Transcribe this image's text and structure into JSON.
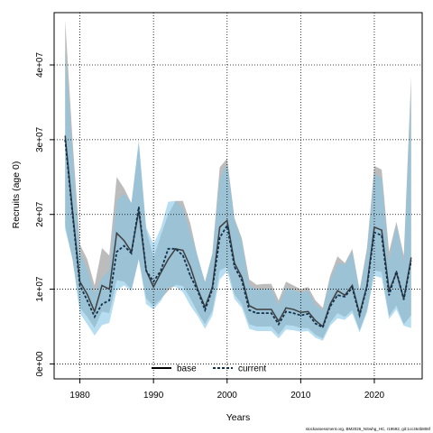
{
  "chart_data": {
    "type": "line",
    "xlabel": "Years",
    "ylabel": "Recruits (age 0)",
    "xlim": [
      1976.5,
      2026.5
    ],
    "ylim": [
      -2000000,
      47000000
    ],
    "x_ticks": [
      1980,
      1990,
      2000,
      2010,
      2020
    ],
    "x_tick_labels": [
      "1980",
      "1990",
      "2000",
      "2010",
      "2020"
    ],
    "y_ticks": [
      0,
      10000000,
      20000000,
      30000000,
      40000000
    ],
    "y_tick_labels": [
      "0e+00",
      "1e+07",
      "2e+07",
      "3e+07",
      "4e+07"
    ],
    "grid": true,
    "legend_position": "bottom",
    "caption": "stockassessment.org, BM2026_NSwhg_HC, r19592, git:1cc464b806f",
    "x": [
      1978,
      1979,
      1980,
      1981,
      1982,
      1983,
      1984,
      1985,
      1986,
      1987,
      1988,
      1989,
      1990,
      1991,
      1992,
      1993,
      1994,
      1995,
      1996,
      1997,
      1998,
      1999,
      2000,
      2001,
      2002,
      2003,
      2004,
      2005,
      2006,
      2007,
      2008,
      2009,
      2010,
      2011,
      2012,
      2013,
      2014,
      2015,
      2016,
      2017,
      2018,
      2019,
      2020,
      2021,
      2022,
      2023,
      2024,
      2025
    ],
    "series": [
      {
        "name": "base",
        "color": "#3f3f3f",
        "band_color": "#a6a6a6",
        "line_style": "solid",
        "values": [
          30500000,
          20500000,
          11000000,
          9300000,
          7000000,
          10500000,
          10000000,
          17500000,
          16500000,
          15000000,
          20500000,
          12500000,
          10300000,
          12200000,
          14000000,
          15400000,
          15200000,
          13000000,
          10000000,
          7600000,
          10300000,
          18300000,
          19200000,
          13500000,
          11600000,
          7800000,
          7300000,
          7300000,
          7300000,
          5700000,
          7500000,
          7300000,
          6900000,
          7000000,
          5800000,
          5000000,
          8000000,
          9800000,
          9200000,
          10500000,
          6700000,
          10500000,
          18300000,
          17900000,
          9800000,
          12200000,
          8700000,
          14200000
        ],
        "lower": [
          18500000,
          14000000,
          7500000,
          6300000,
          4800000,
          7000000,
          6800000,
          11200000,
          11000000,
          10000000,
          14000000,
          8800000,
          7700000,
          8700000,
          9800000,
          10600000,
          10400000,
          8800000,
          6900000,
          5300000,
          7100000,
          12500000,
          13000000,
          9300000,
          8000000,
          5300000,
          5000000,
          5000000,
          5000000,
          3900000,
          5200000,
          5100000,
          4800000,
          4800000,
          3900000,
          3400000,
          5500000,
          6800000,
          6300000,
          7200000,
          4500000,
          7100000,
          12500000,
          12300000,
          6400000,
          7800000,
          5300000,
          6500000
        ],
        "upper": [
          46000000,
          30000000,
          16000000,
          14000000,
          10500000,
          15500000,
          14500000,
          25000000,
          23500000,
          21500000,
          29500000,
          18000000,
          14200000,
          17200000,
          20000000,
          21800000,
          21800000,
          18800000,
          14300000,
          11000000,
          14800000,
          26300000,
          27500000,
          19500000,
          16800000,
          11300000,
          10600000,
          10700000,
          10700000,
          8500000,
          11000000,
          10500000,
          10000000,
          10300000,
          8500000,
          7500000,
          11800000,
          14400000,
          13500000,
          15400000,
          9900000,
          15500000,
          26500000,
          26000000,
          15000000,
          19000000,
          14500000,
          38500000
        ]
      },
      {
        "name": "current",
        "color": "#12314d",
        "band_color": "#87c7e6",
        "line_style": "dashed",
        "values": [
          30000000,
          20000000,
          10500000,
          8500000,
          6300000,
          8000000,
          8500000,
          15000000,
          15800000,
          14800000,
          21000000,
          12500000,
          11000000,
          12500000,
          15400000,
          15400000,
          14500000,
          11800000,
          9800000,
          7200000,
          10000000,
          16900000,
          18500000,
          13000000,
          11200000,
          7200000,
          6800000,
          6800000,
          6800000,
          5300000,
          7000000,
          6800000,
          6500000,
          6700000,
          5400000,
          4900000,
          7700000,
          9200000,
          9000000,
          10200000,
          6500000,
          10300000,
          17600000,
          17200000,
          9200000,
          12400000,
          8600000,
          13800000
        ],
        "lower": [
          18000000,
          14000000,
          6800000,
          5300000,
          3800000,
          5200000,
          5500000,
          9800000,
          10500000,
          9700000,
          14000000,
          8000000,
          7300000,
          8400000,
          10300000,
          10300000,
          9600000,
          7800000,
          6400000,
          4700000,
          6500000,
          11300000,
          12400000,
          8700000,
          7500000,
          4700000,
          4400000,
          4400000,
          4400000,
          3400000,
          4600000,
          4500000,
          4300000,
          4400000,
          3500000,
          3100000,
          5100000,
          6100000,
          5900000,
          6800000,
          4200000,
          6900000,
          11800000,
          11500000,
          6000000,
          7300000,
          5100000,
          4800000
        ],
        "upper": [
          42000000,
          28000000,
          15000000,
          12700000,
          9500000,
          11500000,
          12500000,
          21800000,
          22800000,
          21500000,
          30000000,
          18300000,
          16000000,
          18200000,
          21700000,
          21800000,
          20800000,
          17500000,
          14500000,
          10800000,
          14700000,
          24700000,
          26800000,
          19200000,
          16500000,
          10500000,
          10000000,
          10000000,
          10000000,
          7800000,
          10200000,
          9900000,
          9500000,
          9800000,
          7900000,
          7200000,
          11200000,
          13500000,
          13300000,
          15000000,
          9600000,
          14900000,
          25500000,
          24800000,
          13700000,
          18700000,
          13500000,
          36500000
        ]
      }
    ]
  }
}
